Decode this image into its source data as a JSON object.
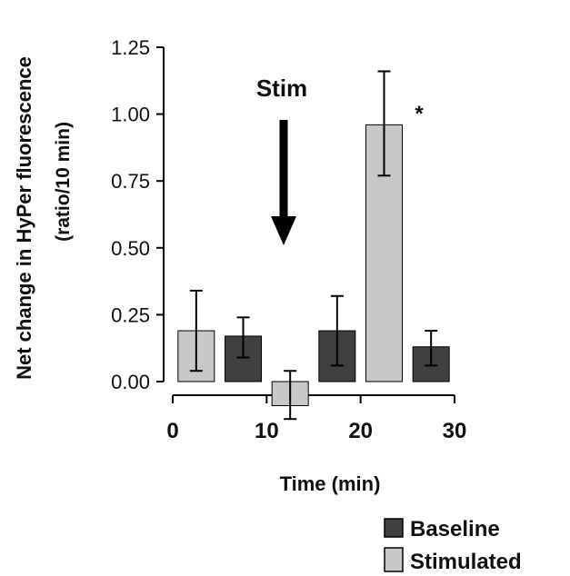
{
  "chart_data": {
    "type": "bar",
    "title": "",
    "ylabel_line1": "Net change in HyPer fluorescence",
    "ylabel_line2": "(ratio/10 min)",
    "xlabel": "Time (min)",
    "ylim": [
      0.0,
      1.25
    ],
    "xlim": [
      0,
      30
    ],
    "y_ticks": [
      0.0,
      0.25,
      0.5,
      0.75,
      1.0,
      1.25
    ],
    "y_tick_labels": [
      "0.00",
      "0.25",
      "0.50",
      "0.75",
      "1.00",
      "1.25"
    ],
    "x_ticks": [
      0,
      10,
      20,
      30
    ],
    "x_tick_labels": [
      "0",
      "10",
      "20",
      "30"
    ],
    "series": [
      {
        "name": "Stimulated",
        "color": "#c8c8c8",
        "points": [
          {
            "x": 2.5,
            "value": 0.19,
            "err_low": 0.04,
            "err_high": 0.34
          },
          {
            "x": 12.5,
            "value": -0.09,
            "err_low": -0.14,
            "err_high": 0.04
          },
          {
            "x": 22.5,
            "value": 0.96,
            "err_low": 0.77,
            "err_high": 1.16
          }
        ]
      },
      {
        "name": "Baseline",
        "color": "#404040",
        "points": [
          {
            "x": 7.5,
            "value": 0.17,
            "err_low": 0.09,
            "err_high": 0.24
          },
          {
            "x": 17.5,
            "value": 0.19,
            "err_low": 0.06,
            "err_high": 0.32
          },
          {
            "x": 27.5,
            "value": 0.13,
            "err_low": 0.06,
            "err_high": 0.19
          }
        ]
      }
    ],
    "annotations": [
      {
        "text": "Stim",
        "kind": "arrow-down",
        "x": 12.5
      },
      {
        "text": "*",
        "kind": "significance",
        "x": 22.5
      }
    ],
    "legend": {
      "placement": "bottom-right",
      "entries": [
        {
          "label": "Baseline",
          "color": "#404040"
        },
        {
          "label": "Stimulated",
          "color": "#c8c8c8"
        }
      ]
    }
  }
}
